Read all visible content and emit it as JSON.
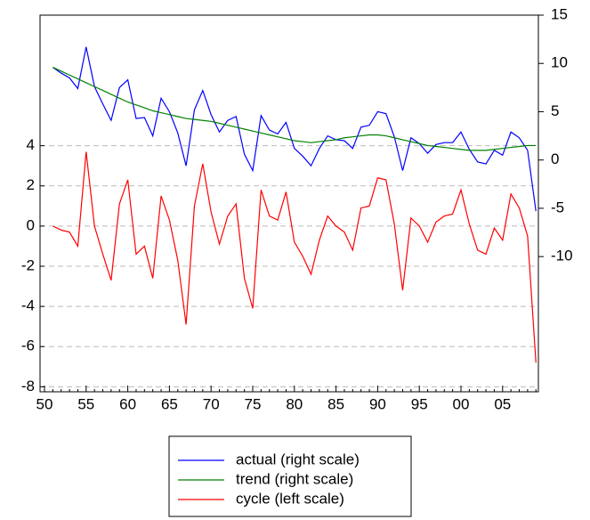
{
  "chart_data": {
    "type": "line",
    "categories": [
      "50",
      null,
      null,
      null,
      null,
      "55",
      null,
      null,
      null,
      null,
      "60",
      null,
      null,
      null,
      null,
      "65",
      null,
      null,
      null,
      null,
      "70",
      null,
      null,
      null,
      null,
      "75",
      null,
      null,
      null,
      null,
      "80",
      null,
      null,
      null,
      null,
      "85",
      null,
      null,
      null,
      null,
      "90",
      null,
      null,
      null,
      null,
      "95",
      null,
      null,
      null,
      null,
      "00",
      null,
      null,
      null,
      null,
      "05",
      null,
      null,
      null,
      null
    ],
    "series": [
      {
        "name": "actual (right scale)",
        "color": "#0000ff",
        "axis": "y2",
        "values": [
          null,
          9.6,
          9.0,
          8.5,
          7.4,
          11.7,
          7.6,
          5.8,
          4.1,
          7.5,
          8.3,
          4.3,
          4.4,
          2.5,
          6.4,
          5.0,
          2.8,
          -0.6,
          5.2,
          7.2,
          4.7,
          2.9,
          4.1,
          4.5,
          0.6,
          -1.1,
          4.6,
          3.1,
          2.7,
          3.9,
          1.2,
          0.4,
          -0.6,
          1.2,
          2.5,
          2.1,
          2.0,
          1.2,
          3.4,
          3.6,
          5.0,
          4.8,
          2.4,
          -1.1,
          2.3,
          1.7,
          0.7,
          1.6,
          1.8,
          1.8,
          2.9,
          1.1,
          -0.2,
          -0.4,
          1.0,
          0.5,
          2.9,
          2.3,
          1.0,
          -5.3
        ]
      },
      {
        "name": "trend (right scale)",
        "color": "#008000",
        "axis": "y2",
        "values": [
          null,
          9.6,
          9.2,
          8.8,
          8.4,
          8.0,
          7.6,
          7.2,
          6.8,
          6.4,
          6.0,
          5.7,
          5.4,
          5.1,
          4.9,
          4.7,
          4.5,
          4.3,
          4.2,
          4.1,
          4.0,
          3.8,
          3.6,
          3.4,
          3.2,
          3.0,
          2.8,
          2.6,
          2.4,
          2.2,
          2.0,
          1.9,
          1.8,
          1.9,
          2.0,
          2.1,
          2.3,
          2.4,
          2.5,
          2.6,
          2.6,
          2.5,
          2.3,
          2.1,
          1.9,
          1.7,
          1.5,
          1.4,
          1.3,
          1.2,
          1.1,
          1.0,
          1.0,
          1.0,
          1.1,
          1.2,
          1.3,
          1.4,
          1.5,
          1.5
        ]
      },
      {
        "name": "cycle (left scale)",
        "color": "#ff0000",
        "values": [
          null,
          0.0,
          -0.2,
          -0.3,
          -1.0,
          3.7,
          0.0,
          -1.4,
          -2.7,
          1.1,
          2.3,
          -1.4,
          -1.0,
          -2.6,
          1.5,
          0.3,
          -1.7,
          -4.9,
          1.0,
          3.1,
          0.7,
          -0.9,
          0.5,
          1.1,
          -2.6,
          -4.1,
          1.8,
          0.5,
          0.3,
          1.7,
          -0.8,
          -1.5,
          -2.4,
          -0.7,
          0.5,
          0.0,
          -0.3,
          -1.2,
          0.9,
          1.0,
          2.4,
          2.3,
          0.1,
          -3.2,
          0.4,
          0.0,
          -0.8,
          0.2,
          0.5,
          0.6,
          1.8,
          0.1,
          -1.2,
          -1.4,
          -0.1,
          -0.7,
          1.6,
          0.9,
          -0.5,
          -6.8
        ]
      }
    ],
    "ylim": [
      -8.25,
      10.5
    ],
    "yticks": [
      -8,
      -6,
      -4,
      -2,
      0,
      2,
      4
    ],
    "y2lim": [
      -24,
      15
    ],
    "y2ticks": [
      -10,
      -5,
      0,
      5,
      10,
      15
    ],
    "grid": true
  }
}
